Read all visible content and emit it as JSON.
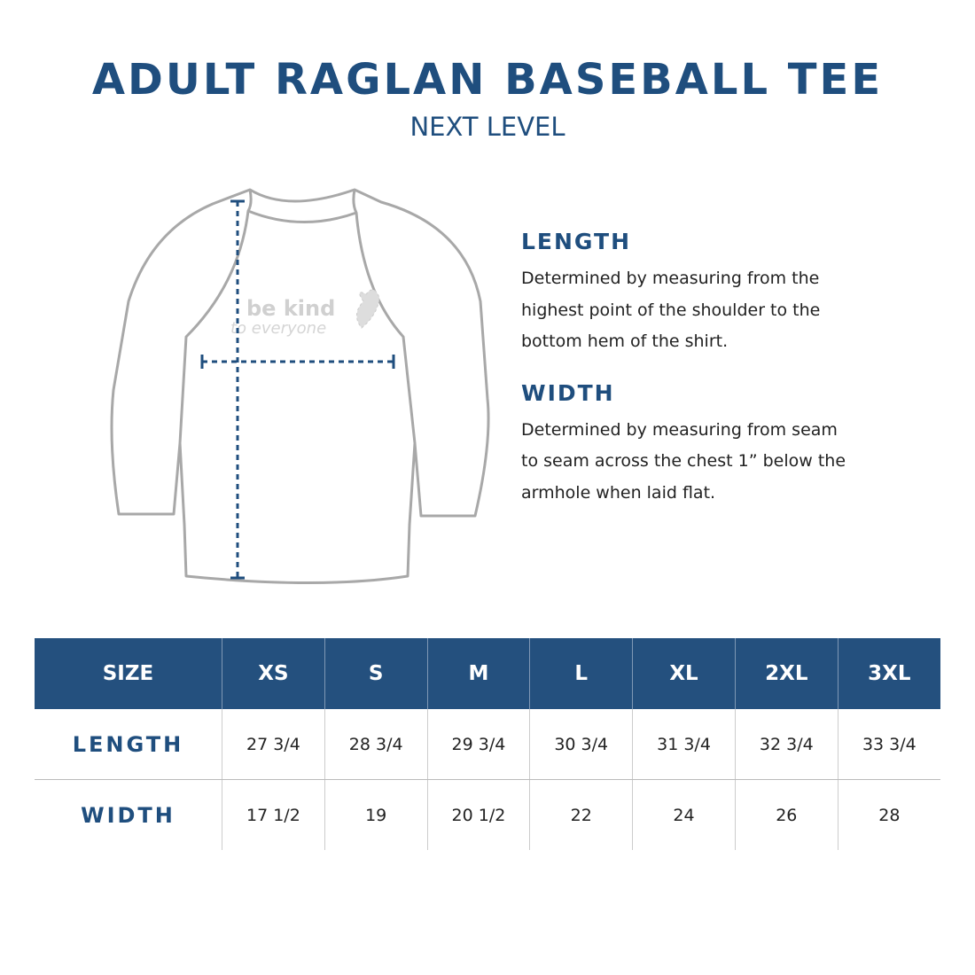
{
  "header": {
    "title": "ADULT RAGLAN BASEBALL TEE",
    "subtitle": "NEXT LEVEL"
  },
  "shirt_print": {
    "line1": "be kind",
    "line2": "to everyone"
  },
  "definitions": [
    {
      "title": "LENGTH",
      "lines": [
        "Determined by measuring from the",
        "highest point of the shoulder to the",
        "bottom hem of the shirt."
      ]
    },
    {
      "title": "WIDTH",
      "lines": [
        "Determined by measuring from seam",
        "to seam across the chest 1” below the",
        "armhole when laid flat."
      ]
    }
  ],
  "table": {
    "header": [
      "SIZE",
      "XS",
      "S",
      "M",
      "L",
      "XL",
      "2XL",
      "3XL"
    ],
    "rows": [
      [
        "LENGTH",
        "27 3/4",
        "28 3/4",
        "29 3/4",
        "30 3/4",
        "31 3/4",
        "32 3/4",
        "33 3/4"
      ],
      [
        "WIDTH",
        "17 1/2",
        "19",
        "20 1/2",
        "22",
        "24",
        "26",
        "28"
      ]
    ]
  }
}
